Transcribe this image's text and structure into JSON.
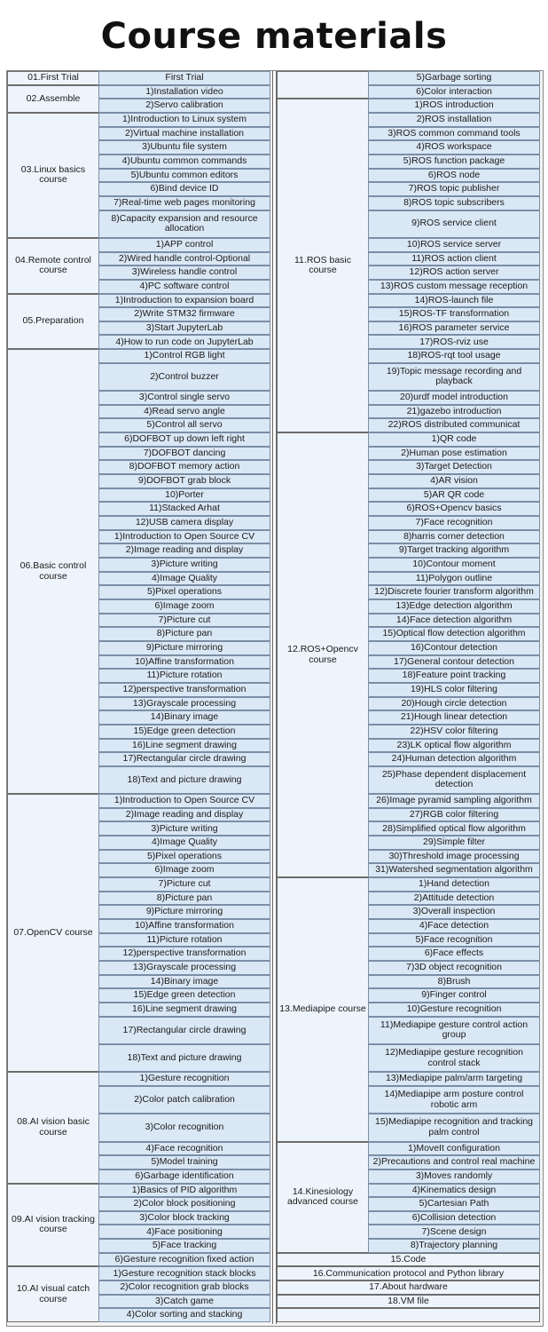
{
  "title": "Course materials",
  "colors": {
    "category_bg": "#eef4fb",
    "item_bg": "#dae7f5",
    "border": "#6d6d6d"
  },
  "left": [
    {
      "category": "01.First Trial",
      "items": [
        "First Trial"
      ]
    },
    {
      "category": "02.Assemble",
      "items": [
        "1)Installation video",
        "2)Servo calibration"
      ]
    },
    {
      "category": "03.Linux basics course",
      "items": [
        "1)Introduction to Linux system",
        "2)Virtual machine installation",
        "3)Ubuntu file system",
        "4)Ubuntu common commands",
        "5)Ubuntu common editors",
        "6)Bind device ID",
        "7)Real-time web pages monitoring",
        "8)Capacity expansion and resource allocation"
      ]
    },
    {
      "category": "04.Remote control course",
      "items": [
        "1)APP control",
        "2)Wired handle control-Optional",
        "3)Wireless handle control",
        "4)PC software control"
      ]
    },
    {
      "category": "05.Preparation",
      "items": [
        "1)Introduction to expansion board",
        "2)Write STM32 firmware",
        "3)Start JupyterLab",
        "4)How to run code on JupyterLab"
      ]
    },
    {
      "category": "06.Basic control course",
      "items": [
        "1)Control RGB light",
        "2)Control buzzer",
        "3)Control single servo",
        "4)Read servo angle",
        "5)Control all servo",
        "6)DOFBOT up down left right",
        "7)DOFBOT dancing",
        "8)DOFBOT memory action",
        "9)DOFBOT grab block",
        "10)Porter",
        "11)Stacked Arhat",
        "12)USB camera display",
        "1)Introduction to Open Source CV",
        "2)Image reading and display",
        "3)Picture writing",
        "4)Image Quality",
        "5)Pixel operations",
        "6)Image zoom",
        "7)Picture cut",
        "8)Picture pan",
        "9)Picture mirroring",
        "10)Affine transformation",
        "11)Picture rotation",
        "12)perspective transformation",
        "13)Grayscale processing",
        "14)Binary image",
        "15)Edge green detection",
        "16)Line segment drawing",
        "17)Rectangular circle drawing",
        "18)Text and picture drawing"
      ]
    },
    {
      "category": "07.OpenCV course",
      "items": [
        "1)Introduction to Open Source CV",
        "2)Image reading and display",
        "3)Picture writing",
        "4)Image Quality",
        "5)Pixel operations",
        "6)Image zoom",
        "7)Picture cut",
        "8)Picture pan",
        "9)Picture mirroring",
        "10)Affine transformation",
        "11)Picture rotation",
        "12)perspective transformation",
        "13)Grayscale processing",
        "14)Binary image",
        "15)Edge green detection",
        "16)Line segment drawing",
        "17)Rectangular circle drawing",
        "18)Text and picture drawing"
      ]
    },
    {
      "category": "08.AI vision basic course",
      "items": [
        "1)Gesture recognition",
        "2)Color patch calibration",
        "3)Color recognition",
        "4)Face recognition",
        "5)Model training",
        "6)Garbage identification"
      ]
    },
    {
      "category": "09.AI vision tracking course",
      "items": [
        "1)Basics of PID algorithm",
        "2)Color block positioning",
        "3)Color block tracking",
        "4)Face positioning",
        "5)Face tracking",
        "6)Gesture recognition fixed action"
      ]
    },
    {
      "category": "10.AI visual catch course",
      "items": [
        "1)Gesture recognition stack blocks",
        "2)Color recognition grab blocks",
        "3)Catch game",
        "4)Color sorting and stacking"
      ]
    }
  ],
  "right": [
    {
      "category": "",
      "items": [
        "5)Garbage sorting",
        "6)Color interaction"
      ]
    },
    {
      "category": "11.ROS basic course",
      "items": [
        "1)ROS introduction",
        "2)ROS installation",
        "3)ROS common command tools",
        "4)ROS workspace",
        "5)ROS function package",
        "6)ROS node",
        "7)ROS topic publisher",
        "8)ROS topic subscribers",
        "9)ROS service client",
        "10)ROS service server",
        "11)ROS action client",
        "12)ROS action server",
        "13)ROS custom message reception",
        "14)ROS-launch file",
        "15)ROS-TF transformation",
        "16)ROS parameter service",
        "17)ROS-rviz use",
        "18)ROS-rqt tool usage",
        "19)Topic message recording and playback",
        "20)urdf model introduction",
        "21)gazebo introduction",
        "22)ROS distributed communicat"
      ]
    },
    {
      "category": "12.ROS+Opencv course",
      "items": [
        "1)QR code",
        "2)Human pose estimation",
        "3)Target Detection",
        "4)AR vision",
        "5)AR QR code",
        "6)ROS+Opencv basics",
        "7)Face recognition",
        "8)harris corner detection",
        "9)Target tracking algorithm",
        "10)Contour moment",
        "11)Polygon outline",
        "12)Discrete fourier transform algorithm",
        "13)Edge detection algorithm",
        "14)Face detection algorithm",
        "15)Optical flow detection algorithm",
        "16)Contour detection",
        "17)General contour detection",
        "18)Feature point tracking",
        "19)HLS color filtering",
        "20)Hough circle detection",
        "21)Hough linear detection",
        "22)HSV color filtering",
        "23)LK optical flow algorithm",
        "24)Human detection algorithm",
        "25)Phase dependent displacement detection",
        "26)Image pyramid sampling algorithm",
        "27)RGB color filtering",
        "28)Simplified optical flow algorithm",
        "29)Simple filter",
        "30)Threshold image processing",
        "31)Watershed segmentation algorithm"
      ]
    },
    {
      "category": "13.Mediapipe course",
      "items": [
        "1)Hand detection",
        "2)Attitude detection",
        "3)Overall inspection",
        "4)Face detection",
        "5)Face recognition",
        "6)Face effects",
        "7)3D object recognition",
        "8)Brush",
        "9)Finger control",
        "10)Gesture recognition",
        "11)Mediapipe gesture control action group",
        "12)Mediapipe gesture recognition control stack",
        "13)Mediapipe palm/arm targeting",
        "14)Mediapipe arm posture control robotic arm",
        "15)Mediapipe recognition and tracking palm control"
      ]
    },
    {
      "category": "14.Kinesiology advanced course",
      "items": [
        "1)MoveIt configuration",
        "2)Precautions and control real machine",
        "3)Moves randomly",
        "4)Kinematics design",
        "5)Cartesian Path",
        "6)Collision detection",
        "7)Scene design",
        "8)Trajectory planning"
      ]
    }
  ],
  "right_full_rows": [
    "15.Code",
    "16.Communication protocol and Python library",
    "17.About hardware",
    "18.VM file",
    ""
  ]
}
